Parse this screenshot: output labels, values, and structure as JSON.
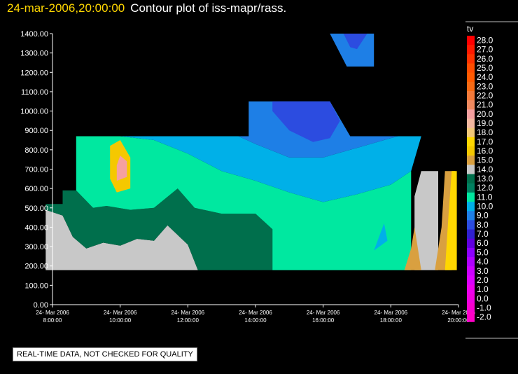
{
  "header": {
    "datetime": "24-mar-2006,20:00:00",
    "title": "Contour plot of iss-mapr/rass."
  },
  "notice": "REAL-TIME DATA, NOT CHECKED FOR QUALITY",
  "colors": {
    "background": "#000000",
    "title_date": "#ffd700",
    "no_data": "#000000"
  },
  "chart_data": {
    "type": "heatmap",
    "title": "Contour plot of iss-mapr/rass.",
    "xlabel": "",
    "ylabel": "",
    "ylim": [
      0,
      1400
    ],
    "yticks": [
      "0.00",
      "100.00",
      "200.00",
      "300.00",
      "400.00",
      "500.00",
      "600.00",
      "700.00",
      "800.00",
      "900.00",
      "1000.00",
      "1100.00",
      "1200.00",
      "1300.00",
      "1400.00"
    ],
    "xticks": [
      {
        "date": "24- Mar 2006",
        "time": "8:00:00"
      },
      {
        "date": "24- Mar 2006",
        "time": "10:00:00"
      },
      {
        "date": "24- Mar 2006",
        "time": "12:00:00"
      },
      {
        "date": "24- Mar 2006",
        "time": "14:00:00"
      },
      {
        "date": "24- Mar 2006",
        "time": "16:00:00"
      },
      {
        "date": "24- Mar 2006",
        "time": "18:00:00"
      },
      {
        "date": "24- Mar 2006",
        "time": "20:00:00"
      }
    ],
    "xlim_hours": [
      8,
      20
    ],
    "colorbar": {
      "label": "tv",
      "levels": [
        {
          "label": "28.0",
          "color": "#ff0000"
        },
        {
          "label": "27.0",
          "color": "#ff1a00"
        },
        {
          "label": "26.0",
          "color": "#ff3300"
        },
        {
          "label": "25.0",
          "color": "#ff4d00"
        },
        {
          "label": "24.0",
          "color": "#ff5a00"
        },
        {
          "label": "23.0",
          "color": "#f66a14"
        },
        {
          "label": "22.0",
          "color": "#f37a3a"
        },
        {
          "label": "21.0",
          "color": "#f08a60"
        },
        {
          "label": "20.0",
          "color": "#f5a0a0"
        },
        {
          "label": "19.0",
          "color": "#f4b8a0"
        },
        {
          "label": "18.0",
          "color": "#f2c878"
        },
        {
          "label": "17.0",
          "color": "#ffd700"
        },
        {
          "label": "16.0",
          "color": "#f5c800"
        },
        {
          "label": "15.0",
          "color": "#d9a040"
        },
        {
          "label": "14.0",
          "color": "#c8c8c8"
        },
        {
          "label": "13.0",
          "color": "#006f4c"
        },
        {
          "label": "12.0",
          "color": "#008060"
        },
        {
          "label": "11.0",
          "color": "#00e8a0"
        },
        {
          "label": "10.0",
          "color": "#00b0e8"
        },
        {
          "label": "9.0",
          "color": "#1e7fe6"
        },
        {
          "label": "8.0",
          "color": "#2c4ce0"
        },
        {
          "label": "7.0",
          "color": "#3020d0"
        },
        {
          "label": "6.0",
          "color": "#6000e0"
        },
        {
          "label": "5.0",
          "color": "#8c00ff"
        },
        {
          "label": "4.0",
          "color": "#b000ff"
        },
        {
          "label": "3.0",
          "color": "#cc00ff"
        },
        {
          "label": "2.0",
          "color": "#dd00ff"
        },
        {
          "label": "1.0",
          "color": "#ee00ee"
        },
        {
          "label": "0.0",
          "color": "#f000e0"
        },
        {
          "label": "-1.0",
          "color": "#f800d0"
        },
        {
          "label": "-2.0",
          "color": "#ff00c8"
        }
      ]
    },
    "regions": [
      {
        "name": "region-gray-low",
        "level": "14.0",
        "points": [
          [
            7.8,
            178
          ],
          [
            7.8,
            490
          ],
          [
            8.3,
            460
          ],
          [
            8.6,
            350
          ],
          [
            9.0,
            290
          ],
          [
            9.5,
            320
          ],
          [
            10.0,
            305
          ],
          [
            10.5,
            340
          ],
          [
            11.0,
            330
          ],
          [
            11.4,
            410
          ],
          [
            12.0,
            310
          ],
          [
            12.3,
            178
          ]
        ]
      },
      {
        "name": "region-dkgreen-main",
        "level": "13.0",
        "points": [
          [
            7.8,
            490
          ],
          [
            7.8,
            520
          ],
          [
            8.3,
            520
          ],
          [
            8.3,
            590
          ],
          [
            8.7,
            590
          ],
          [
            9.2,
            500
          ],
          [
            9.6,
            510
          ],
          [
            10.3,
            490
          ],
          [
            11.0,
            500
          ],
          [
            11.7,
            600
          ],
          [
            12.2,
            500
          ],
          [
            13.0,
            470
          ],
          [
            14.0,
            470
          ],
          [
            14.5,
            390
          ],
          [
            14.5,
            178
          ],
          [
            12.3,
            178
          ],
          [
            12.0,
            310
          ],
          [
            11.4,
            410
          ],
          [
            11.0,
            330
          ],
          [
            10.5,
            340
          ],
          [
            10.0,
            305
          ],
          [
            9.5,
            320
          ],
          [
            9.0,
            290
          ],
          [
            8.6,
            350
          ],
          [
            8.3,
            460
          ]
        ]
      },
      {
        "name": "region-ltgreen-main",
        "level": "11.0",
        "points": [
          [
            8.7,
            590
          ],
          [
            8.7,
            870
          ],
          [
            10.0,
            870
          ],
          [
            11.0,
            850
          ],
          [
            12.0,
            780
          ],
          [
            13.0,
            690
          ],
          [
            14.0,
            640
          ],
          [
            15.0,
            580
          ],
          [
            16.0,
            530
          ],
          [
            17.0,
            570
          ],
          [
            18.0,
            620
          ],
          [
            18.6,
            690
          ],
          [
            18.6,
            178
          ],
          [
            14.5,
            178
          ],
          [
            14.5,
            390
          ],
          [
            14.0,
            470
          ],
          [
            13.0,
            470
          ],
          [
            12.2,
            500
          ],
          [
            11.7,
            600
          ],
          [
            11.0,
            500
          ],
          [
            10.3,
            490
          ],
          [
            9.6,
            510
          ],
          [
            9.2,
            500
          ]
        ]
      },
      {
        "name": "region-cyan-band",
        "level": "10.0",
        "points": [
          [
            10.0,
            870
          ],
          [
            11.0,
            850
          ],
          [
            12.0,
            780
          ],
          [
            13.0,
            690
          ],
          [
            14.0,
            640
          ],
          [
            15.0,
            580
          ],
          [
            16.0,
            530
          ],
          [
            17.0,
            570
          ],
          [
            18.0,
            620
          ],
          [
            18.6,
            690
          ],
          [
            18.9,
            870
          ],
          [
            18.2,
            870
          ],
          [
            17.0,
            810
          ],
          [
            16.0,
            760
          ],
          [
            15.0,
            760
          ],
          [
            14.0,
            830
          ],
          [
            13.5,
            870
          ],
          [
            13.0,
            870
          ],
          [
            12.0,
            870
          ],
          [
            11.0,
            870
          ]
        ]
      },
      {
        "name": "region-blue-upper",
        "level": "9.0",
        "points": [
          [
            13.0,
            870
          ],
          [
            13.5,
            870
          ],
          [
            14.0,
            830
          ],
          [
            15.0,
            760
          ],
          [
            16.0,
            760
          ],
          [
            17.0,
            810
          ],
          [
            18.2,
            870
          ],
          [
            16.8,
            870
          ],
          [
            16.2,
            1050
          ],
          [
            13.8,
            1050
          ],
          [
            13.8,
            870
          ]
        ]
      },
      {
        "name": "region-blue-dark",
        "level": "8.0",
        "points": [
          [
            14.5,
            1000
          ],
          [
            15.0,
            900
          ],
          [
            15.7,
            840
          ],
          [
            16.2,
            860
          ],
          [
            16.5,
            950
          ],
          [
            16.2,
            1050
          ],
          [
            14.5,
            1050
          ]
        ]
      },
      {
        "name": "region-blue-top",
        "level": "9.0",
        "points": [
          [
            16.2,
            1400
          ],
          [
            17.5,
            1400
          ],
          [
            17.5,
            1230
          ],
          [
            16.7,
            1230
          ]
        ]
      },
      {
        "name": "region-blue-top-dark",
        "level": "8.0",
        "points": [
          [
            16.6,
            1400
          ],
          [
            17.3,
            1400
          ],
          [
            17.0,
            1320
          ],
          [
            16.8,
            1330
          ]
        ]
      },
      {
        "name": "region-cyan-patch",
        "level": "10.0",
        "points": [
          [
            17.5,
            280
          ],
          [
            17.8,
            420
          ],
          [
            17.9,
            330
          ]
        ]
      },
      {
        "name": "region-gray-right",
        "level": "14.0",
        "points": [
          [
            18.7,
            178
          ],
          [
            18.7,
            560
          ],
          [
            18.9,
            690
          ],
          [
            19.4,
            690
          ],
          [
            19.4,
            178
          ]
        ]
      },
      {
        "name": "region-orange-right",
        "level": "15.0",
        "points": [
          [
            18.4,
            178
          ],
          [
            18.6,
            290
          ],
          [
            18.7,
            400
          ],
          [
            18.9,
            178
          ]
        ]
      },
      {
        "name": "region-orange-right-2",
        "level": "15.0",
        "points": [
          [
            19.3,
            178
          ],
          [
            19.5,
            400
          ],
          [
            19.6,
            690
          ],
          [
            19.9,
            690
          ],
          [
            19.8,
            178
          ]
        ]
      },
      {
        "name": "region-yellow-right",
        "level": "17.0",
        "points": [
          [
            19.6,
            178
          ],
          [
            19.7,
            450
          ],
          [
            19.8,
            690
          ],
          [
            19.95,
            690
          ],
          [
            19.95,
            178
          ]
        ]
      },
      {
        "name": "region-yellow-blob",
        "level": "16.0",
        "points": [
          [
            9.7,
            650
          ],
          [
            9.9,
            580
          ],
          [
            10.3,
            600
          ],
          [
            10.3,
            760
          ],
          [
            10.0,
            850
          ],
          [
            9.7,
            820
          ]
        ]
      },
      {
        "name": "region-pink-blob",
        "level": "20.0",
        "points": [
          [
            9.9,
            640
          ],
          [
            10.2,
            660
          ],
          [
            10.2,
            740
          ],
          [
            10.0,
            770
          ],
          [
            9.9,
            720
          ]
        ]
      }
    ]
  }
}
